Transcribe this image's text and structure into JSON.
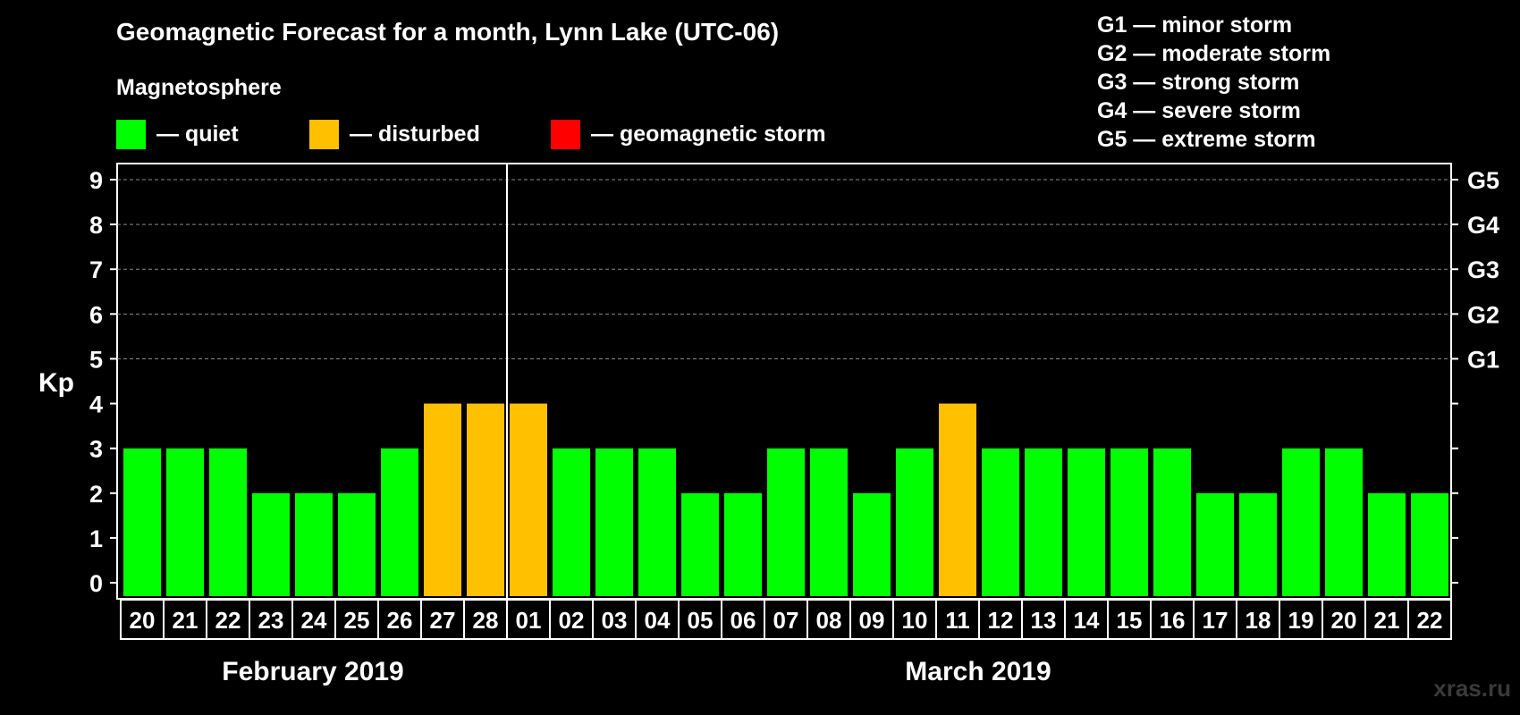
{
  "title": "Geomagnetic Forecast for a month, Lynn Lake (UTC-06)",
  "subtitle": "Magnetosphere",
  "legend": [
    {
      "label": "— quiet",
      "color": "#00ff00"
    },
    {
      "label": "— disturbed",
      "color": "#ffc000"
    },
    {
      "label": "— geomagnetic storm",
      "color": "#ff0000"
    }
  ],
  "storm_legend": [
    "G1 — minor storm",
    "G2 — moderate storm",
    "G3 — strong storm",
    "G4 — severe storm",
    "G5 — extreme storm"
  ],
  "watermark": "xras.ru",
  "colors": {
    "quiet": "#00ff00",
    "disturbed": "#ffc000",
    "storm": "#ff0000",
    "grid": "#888888",
    "frame": "#ffffff"
  },
  "chart_data": {
    "type": "bar",
    "ylabel": "Kp",
    "ylim": [
      0,
      9
    ],
    "yticks": [
      0,
      1,
      2,
      3,
      4,
      5,
      6,
      7,
      8,
      9
    ],
    "right_labels": [
      {
        "kp": 5,
        "label": "G1"
      },
      {
        "kp": 6,
        "label": "G2"
      },
      {
        "kp": 7,
        "label": "G3"
      },
      {
        "kp": 8,
        "label": "G4"
      },
      {
        "kp": 9,
        "label": "G5"
      }
    ],
    "categories": [
      "20",
      "21",
      "22",
      "23",
      "24",
      "25",
      "26",
      "27",
      "28",
      "01",
      "02",
      "03",
      "04",
      "05",
      "06",
      "07",
      "08",
      "09",
      "10",
      "11",
      "12",
      "13",
      "14",
      "15",
      "16",
      "17",
      "18",
      "19",
      "20",
      "21",
      "22"
    ],
    "values": [
      3,
      3,
      3,
      2,
      2,
      2,
      3,
      4,
      4,
      4,
      3,
      3,
      3,
      2,
      2,
      3,
      3,
      2,
      3,
      4,
      3,
      3,
      3,
      3,
      3,
      2,
      2,
      3,
      3,
      2,
      2
    ],
    "status": [
      "quiet",
      "quiet",
      "quiet",
      "quiet",
      "quiet",
      "quiet",
      "quiet",
      "disturbed",
      "disturbed",
      "disturbed",
      "quiet",
      "quiet",
      "quiet",
      "quiet",
      "quiet",
      "quiet",
      "quiet",
      "quiet",
      "quiet",
      "disturbed",
      "quiet",
      "quiet",
      "quiet",
      "quiet",
      "quiet",
      "quiet",
      "quiet",
      "quiet",
      "quiet",
      "quiet",
      "quiet"
    ],
    "months": [
      {
        "label": "February 2019",
        "start_index": 0,
        "end_index": 8
      },
      {
        "label": "March 2019",
        "start_index": 9,
        "end_index": 30
      }
    ],
    "month_divider_after_index": 8
  }
}
